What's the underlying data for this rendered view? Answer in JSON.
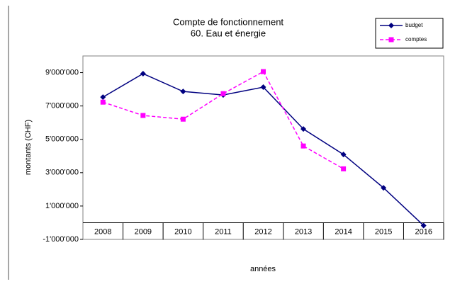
{
  "chart_data": {
    "type": "line",
    "title": "Compte de fonctionnement",
    "subtitle": "60. Eau et énergie",
    "x_label": "années",
    "y_label": "montants (CHF)",
    "categories": [
      "2008",
      "2009",
      "2010",
      "2011",
      "2012",
      "2013",
      "2014",
      "2015",
      "2016"
    ],
    "series": [
      {
        "name": "budget",
        "color": "#000080",
        "dash": "solid",
        "marker": "diamond",
        "values": [
          7530000,
          8940000,
          7870000,
          7660000,
          8130000,
          5620000,
          4090000,
          2090000,
          -170000
        ]
      },
      {
        "name": "comptes",
        "color": "#ff00ff",
        "dash": "dashed",
        "marker": "square",
        "values": [
          7230000,
          6430000,
          6210000,
          7740000,
          9060000,
          4600000,
          3230000,
          null,
          null
        ]
      }
    ],
    "ylim": [
      -1000000,
      10000000
    ],
    "yticks": [
      {
        "value": -1000000,
        "label": "-1'000'000"
      },
      {
        "value": 1000000,
        "label": "1'000'000"
      },
      {
        "value": 3000000,
        "label": "3'000'000"
      },
      {
        "value": 5000000,
        "label": "5'000'000"
      },
      {
        "value": 7000000,
        "label": "7'000'000"
      },
      {
        "value": 9000000,
        "label": "9'000'000"
      }
    ],
    "legend": "top-right"
  }
}
